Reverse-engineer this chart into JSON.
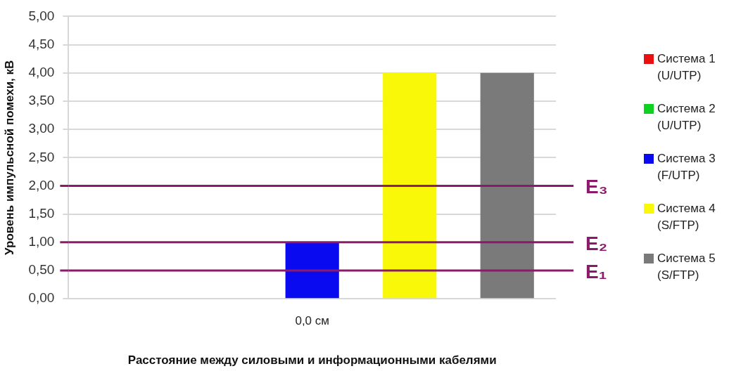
{
  "chart_data": {
    "type": "bar",
    "xlabel": "Расстояние между силовыми и информационными кабелями",
    "ylabel": "Уровень импульсной помехи, кВ",
    "categories": [
      "0,0 см"
    ],
    "series": [
      {
        "name": "Система 1 (U/UTP)",
        "color": "#e81010",
        "values": [
          0
        ]
      },
      {
        "name": "Система 2 (U/UTP)",
        "color": "#10d020",
        "values": [
          0
        ]
      },
      {
        "name": "Система 3 (F/UTP)",
        "color": "#0a0af0",
        "values": [
          1
        ]
      },
      {
        "name": "Система 4 (S/FTP)",
        "color": "#f8f808",
        "values": [
          4
        ]
      },
      {
        "name": "Система 5 (S/FTP)",
        "color": "#7a7a7a",
        "values": [
          4
        ]
      }
    ],
    "ylim": [
      0,
      5
    ],
    "yticks": [
      {
        "value": 0,
        "label": "0,00"
      },
      {
        "value": 0.5,
        "label": "0,50"
      },
      {
        "value": 1,
        "label": "1,00"
      },
      {
        "value": 1.5,
        "label": "1,50"
      },
      {
        "value": 2,
        "label": "2,00"
      },
      {
        "value": 2.5,
        "label": "2,50"
      },
      {
        "value": 3,
        "label": "3,00"
      },
      {
        "value": 3.5,
        "label": "3,50"
      },
      {
        "value": 4,
        "label": "4,00"
      },
      {
        "value": 4.5,
        "label": "4,50"
      },
      {
        "value": 5,
        "label": "5,00"
      }
    ],
    "ref_lines": [
      {
        "axis": "y",
        "value": 0.5,
        "label": "E₁",
        "color": "#8b1a6b"
      },
      {
        "axis": "y",
        "value": 1,
        "label": "E₂",
        "color": "#8b1a6b"
      },
      {
        "axis": "y",
        "value": 2,
        "label": "E₃",
        "color": "#8b1a6b"
      }
    ],
    "grid": "y",
    "legend": "right"
  }
}
